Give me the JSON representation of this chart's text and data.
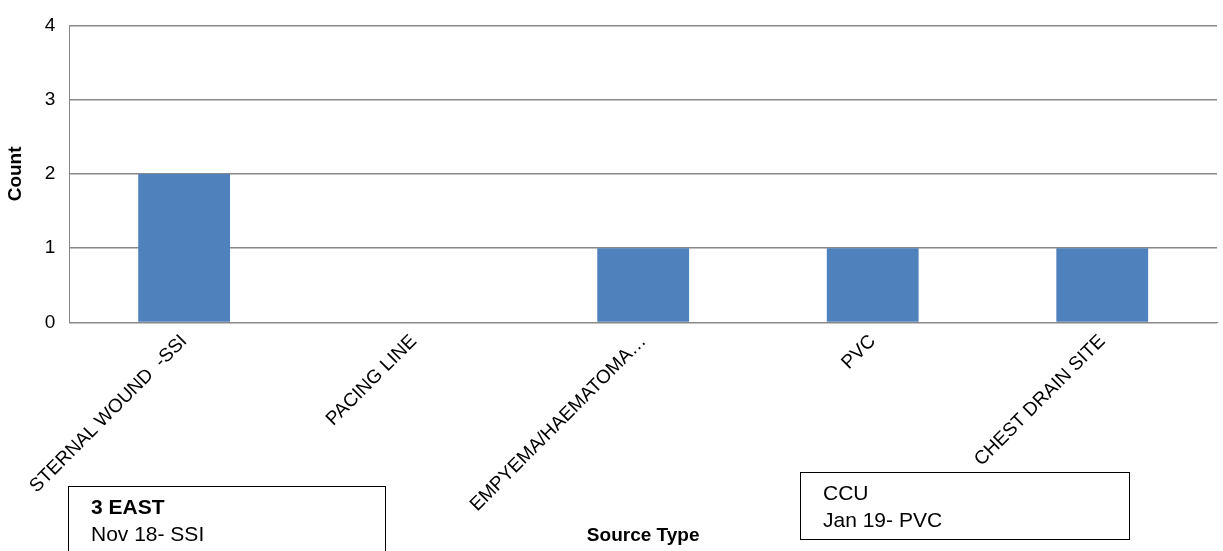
{
  "chart_data": {
    "type": "bar",
    "xlabel": "Source Type",
    "ylabel": "Count",
    "categories": [
      "STERNAL WOUND  -SSI",
      "PACING LINE",
      "EMPYEMA/HAEMATOMA…",
      "PVC",
      "CHEST DRAIN SITE"
    ],
    "values": [
      2,
      0,
      1,
      1,
      1
    ],
    "color": "#4f81bd",
    "ylim": [
      0,
      4
    ],
    "yticks": [
      0,
      1,
      2,
      3,
      4
    ],
    "grid": "y",
    "legend": false,
    "annotations": [
      "3 EAST\nNov 18- SSI",
      "CCU\nJan 19- PVC"
    ]
  }
}
